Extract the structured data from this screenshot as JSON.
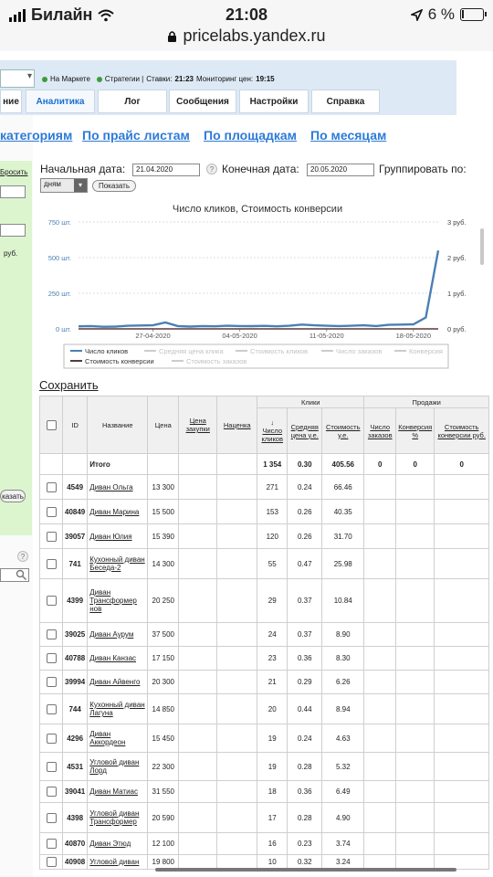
{
  "status_bar": {
    "carrier": "Билайн",
    "time": "21:08",
    "battery": "6 %",
    "url": "pricelabs.yandex.ru"
  },
  "indicators": {
    "market": "На Маркете",
    "strategies": "Стратегии |",
    "rates_label": "Ставки:",
    "rates_time": "21:23",
    "monitoring_label": "Мониторинг цен:",
    "monitoring_time": "19:15"
  },
  "tabs": [
    {
      "label": "ние"
    },
    {
      "label": "Аналитика"
    },
    {
      "label": "Лог"
    },
    {
      "label": "Сообщения"
    },
    {
      "label": "Настройки"
    },
    {
      "label": "Справка"
    }
  ],
  "links": [
    "категориям",
    "По прайс листам",
    "По площадкам",
    "По месяцам"
  ],
  "filter": {
    "start_label": "Начальная дата:",
    "start_value": "21.04.2020",
    "end_label": "Конечная дата:",
    "end_value": "20.05.2020",
    "group_label": "Группировать по:",
    "group_value": "дням",
    "show_button": "Показать",
    "help": "?"
  },
  "left_panel": {
    "reset": "Бросить",
    "rub": "руб.",
    "show": "казать",
    "help": "?"
  },
  "chart_data": {
    "type": "line",
    "title": "Число кликов, Стоимость конверсии",
    "x": [
      "21-04-2020",
      "22-04-2020",
      "23-04-2020",
      "24-04-2020",
      "25-04-2020",
      "26-04-2020",
      "27-04-2020",
      "28-04-2020",
      "29-04-2020",
      "30-04-2020",
      "01-05-2020",
      "02-05-2020",
      "03-05-2020",
      "04-05-2020",
      "05-05-2020",
      "06-05-2020",
      "07-05-2020",
      "08-05-2020",
      "09-05-2020",
      "10-05-2020",
      "11-05-2020",
      "12-05-2020",
      "13-05-2020",
      "14-05-2020",
      "15-05-2020",
      "16-05-2020",
      "17-05-2020",
      "18-05-2020",
      "19-05-2020",
      "20-05-2020"
    ],
    "x_ticks": [
      "27-04-2020",
      "04-05-2020",
      "11-05-2020",
      "18-05-2020"
    ],
    "y_left_ticks": [
      "0 шт.",
      "250 шт.",
      "500 шт.",
      "750 шт."
    ],
    "y_right_ticks": [
      "0 руб.",
      "1 руб.",
      "2 руб.",
      "3 руб."
    ],
    "ylim_left": [
      0,
      750
    ],
    "ylim_right": [
      0,
      3
    ],
    "series": [
      {
        "name": "Число кликов",
        "color": "#4a7fb5",
        "values": [
          18,
          20,
          15,
          16,
          22,
          24,
          25,
          45,
          20,
          16,
          20,
          18,
          22,
          20,
          19,
          21,
          18,
          22,
          30,
          25,
          22,
          20,
          22,
          25,
          20,
          28,
          30,
          32,
          80,
          550
        ]
      },
      {
        "name": "Стоимость конверсии",
        "color": "#5a3a3a",
        "values": [
          0,
          0,
          0,
          0,
          0,
          0,
          0,
          0,
          0,
          0,
          0,
          0,
          0,
          0,
          0,
          0,
          0,
          0,
          0,
          0,
          0,
          0,
          0,
          0,
          0,
          0,
          0,
          0,
          0,
          0
        ]
      }
    ],
    "legend_inactive": [
      "Средняя цена клика",
      "Стоимость кликов",
      "Число заказов",
      "Конверсия",
      "Стоимость заказов"
    ],
    "grid": true
  },
  "save_label": "Сохранить",
  "table": {
    "headers": {
      "id": "ID",
      "name": "Название",
      "price": "Цена",
      "purchase": "Цена закупки",
      "markup": "Наценка",
      "clicks_group": "Клики",
      "sales_group": "Продажи",
      "click_count": "Число кликов",
      "sort_arrow": "↓",
      "avg_price": "Средняя цена у.е.",
      "cost": "Стоимость у.е.",
      "orders": "Число заказов",
      "conversion": "Конверсия %",
      "conv_cost": "Стоимость конверсии руб."
    },
    "total": {
      "label": "Итого",
      "clicks": "1 354",
      "avg": "0.30",
      "cost": "405.56",
      "orders": "0",
      "conversion": "0",
      "conv_cost": "0"
    },
    "rows": [
      {
        "id": "4549",
        "name": "Диван Ольга",
        "price": "13 300",
        "clicks": "271",
        "avg": "0.24",
        "cost": "66.46"
      },
      {
        "id": "40849",
        "name": "Диван Марина",
        "price": "15 500",
        "clicks": "153",
        "avg": "0.26",
        "cost": "40.35"
      },
      {
        "id": "39057",
        "name": "Диван Юлия",
        "price": "15 390",
        "clicks": "120",
        "avg": "0.26",
        "cost": "31.70"
      },
      {
        "id": "741",
        "name": "Кухонный диван Беседа-2",
        "price": "14 300",
        "clicks": "55",
        "avg": "0.47",
        "cost": "25.98"
      },
      {
        "id": "4399",
        "name": "Диван Трансформер нов",
        "price": "20 250",
        "clicks": "29",
        "avg": "0.37",
        "cost": "10.84"
      },
      {
        "id": "39025",
        "name": "Диван Аурум",
        "price": "37 500",
        "clicks": "24",
        "avg": "0.37",
        "cost": "8.90"
      },
      {
        "id": "40788",
        "name": "Диван Канзас",
        "price": "17 150",
        "clicks": "23",
        "avg": "0.36",
        "cost": "8.30"
      },
      {
        "id": "39994",
        "name": "Диван Айвенго",
        "price": "20 300",
        "clicks": "21",
        "avg": "0.29",
        "cost": "6.26"
      },
      {
        "id": "744",
        "name": "Кухонный диван Лагуна",
        "price": "14 850",
        "clicks": "20",
        "avg": "0.44",
        "cost": "8.94"
      },
      {
        "id": "4296",
        "name": "Диван Аккордеон",
        "price": "15 450",
        "clicks": "19",
        "avg": "0.24",
        "cost": "4.63"
      },
      {
        "id": "4531",
        "name": "Угловой диван Лорд",
        "price": "22 300",
        "clicks": "19",
        "avg": "0.28",
        "cost": "5.32"
      },
      {
        "id": "39041",
        "name": "Диван Матиас",
        "price": "31 550",
        "clicks": "18",
        "avg": "0.36",
        "cost": "6.49"
      },
      {
        "id": "4398",
        "name": "Угловой диван Трансформер",
        "price": "20 590",
        "clicks": "17",
        "avg": "0.28",
        "cost": "4.90"
      },
      {
        "id": "40870",
        "name": "Диван Этюд",
        "price": "12 100",
        "clicks": "16",
        "avg": "0.23",
        "cost": "3.74"
      },
      {
        "id": "40908",
        "name": "Угловой диван",
        "price": "19 800",
        "clicks": "10",
        "avg": "0.32",
        "cost": "3.24"
      }
    ]
  }
}
